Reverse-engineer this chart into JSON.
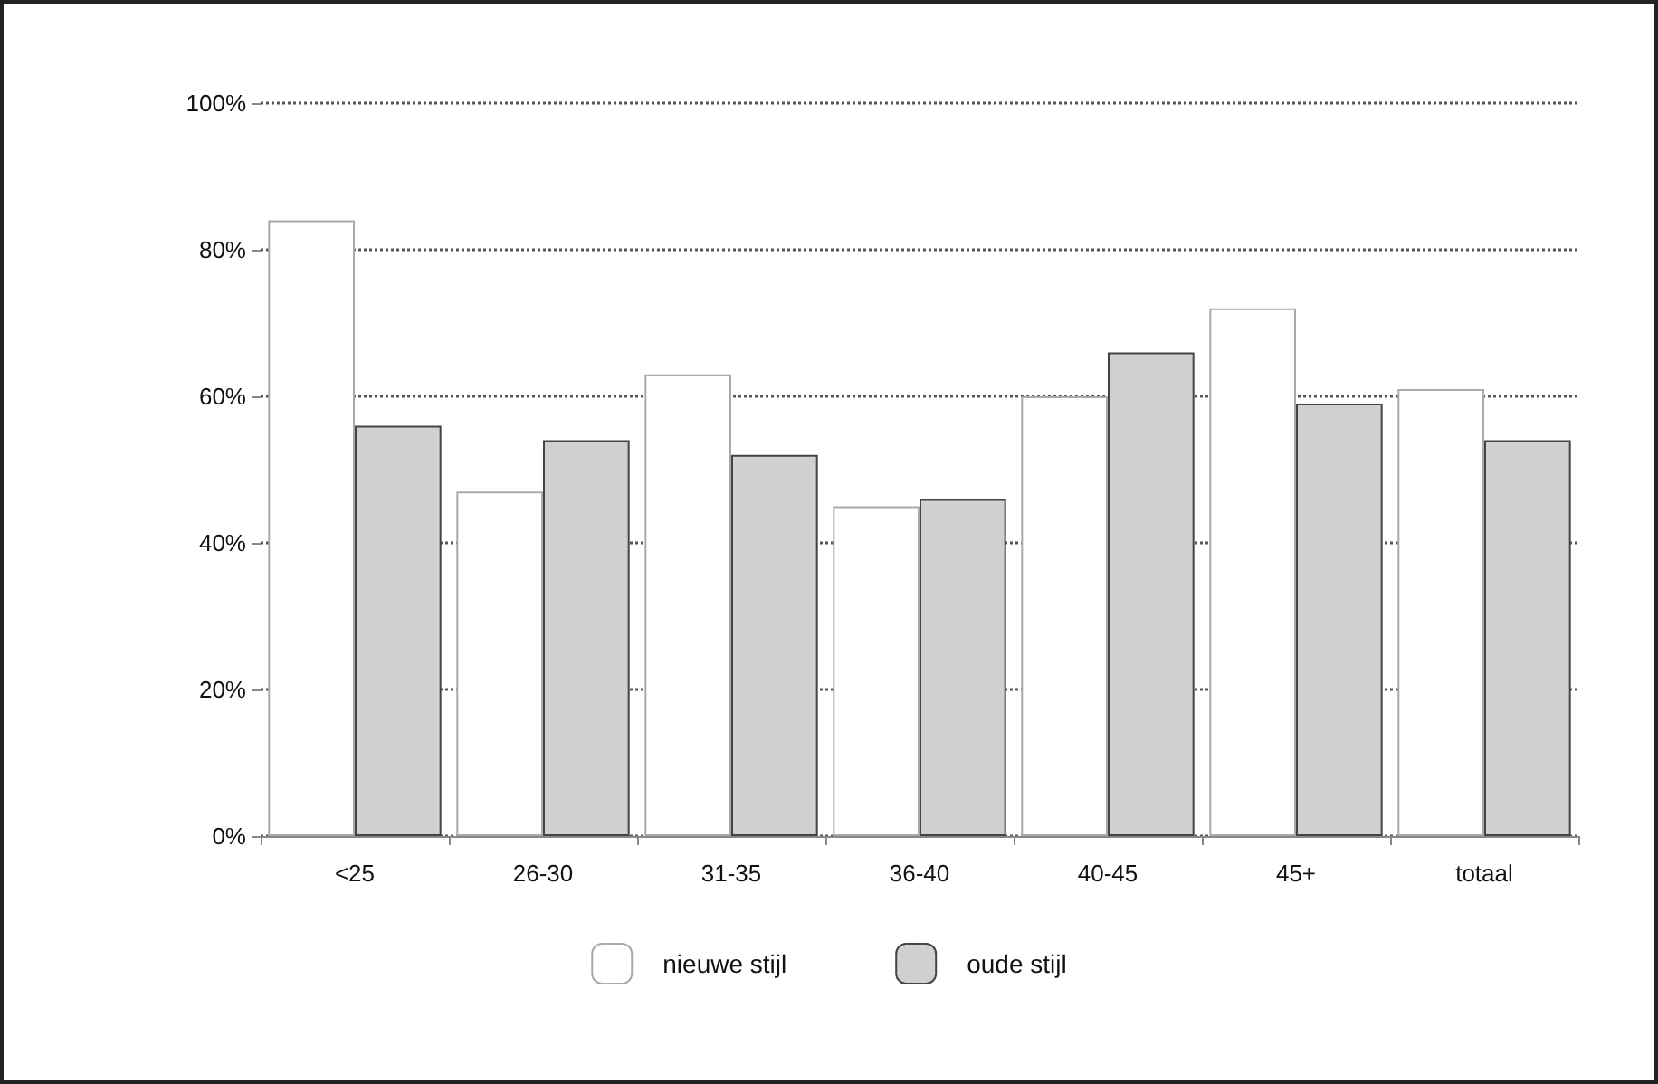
{
  "chart_data": {
    "type": "bar",
    "categories": [
      "<25",
      "26-30",
      "31-35",
      "36-40",
      "40-45",
      "45+",
      "totaal"
    ],
    "series": [
      {
        "name": "nieuwe stijl",
        "color": "#ffffff",
        "values": [
          84,
          47,
          63,
          45,
          60,
          72,
          61
        ]
      },
      {
        "name": "oude stijl",
        "color": "#d0d0d0",
        "values": [
          56,
          54,
          52,
          46,
          66,
          59,
          54
        ]
      }
    ],
    "ylim": [
      0,
      100
    ],
    "yticks": [
      {
        "value": 0,
        "label": "0%"
      },
      {
        "value": 20,
        "label": "20%"
      },
      {
        "value": 40,
        "label": "40%"
      },
      {
        "value": 60,
        "label": "60%"
      },
      {
        "value": 80,
        "label": "80%"
      },
      {
        "value": 100,
        "label": "100%"
      }
    ],
    "grid": "y",
    "legend": "bottom"
  }
}
